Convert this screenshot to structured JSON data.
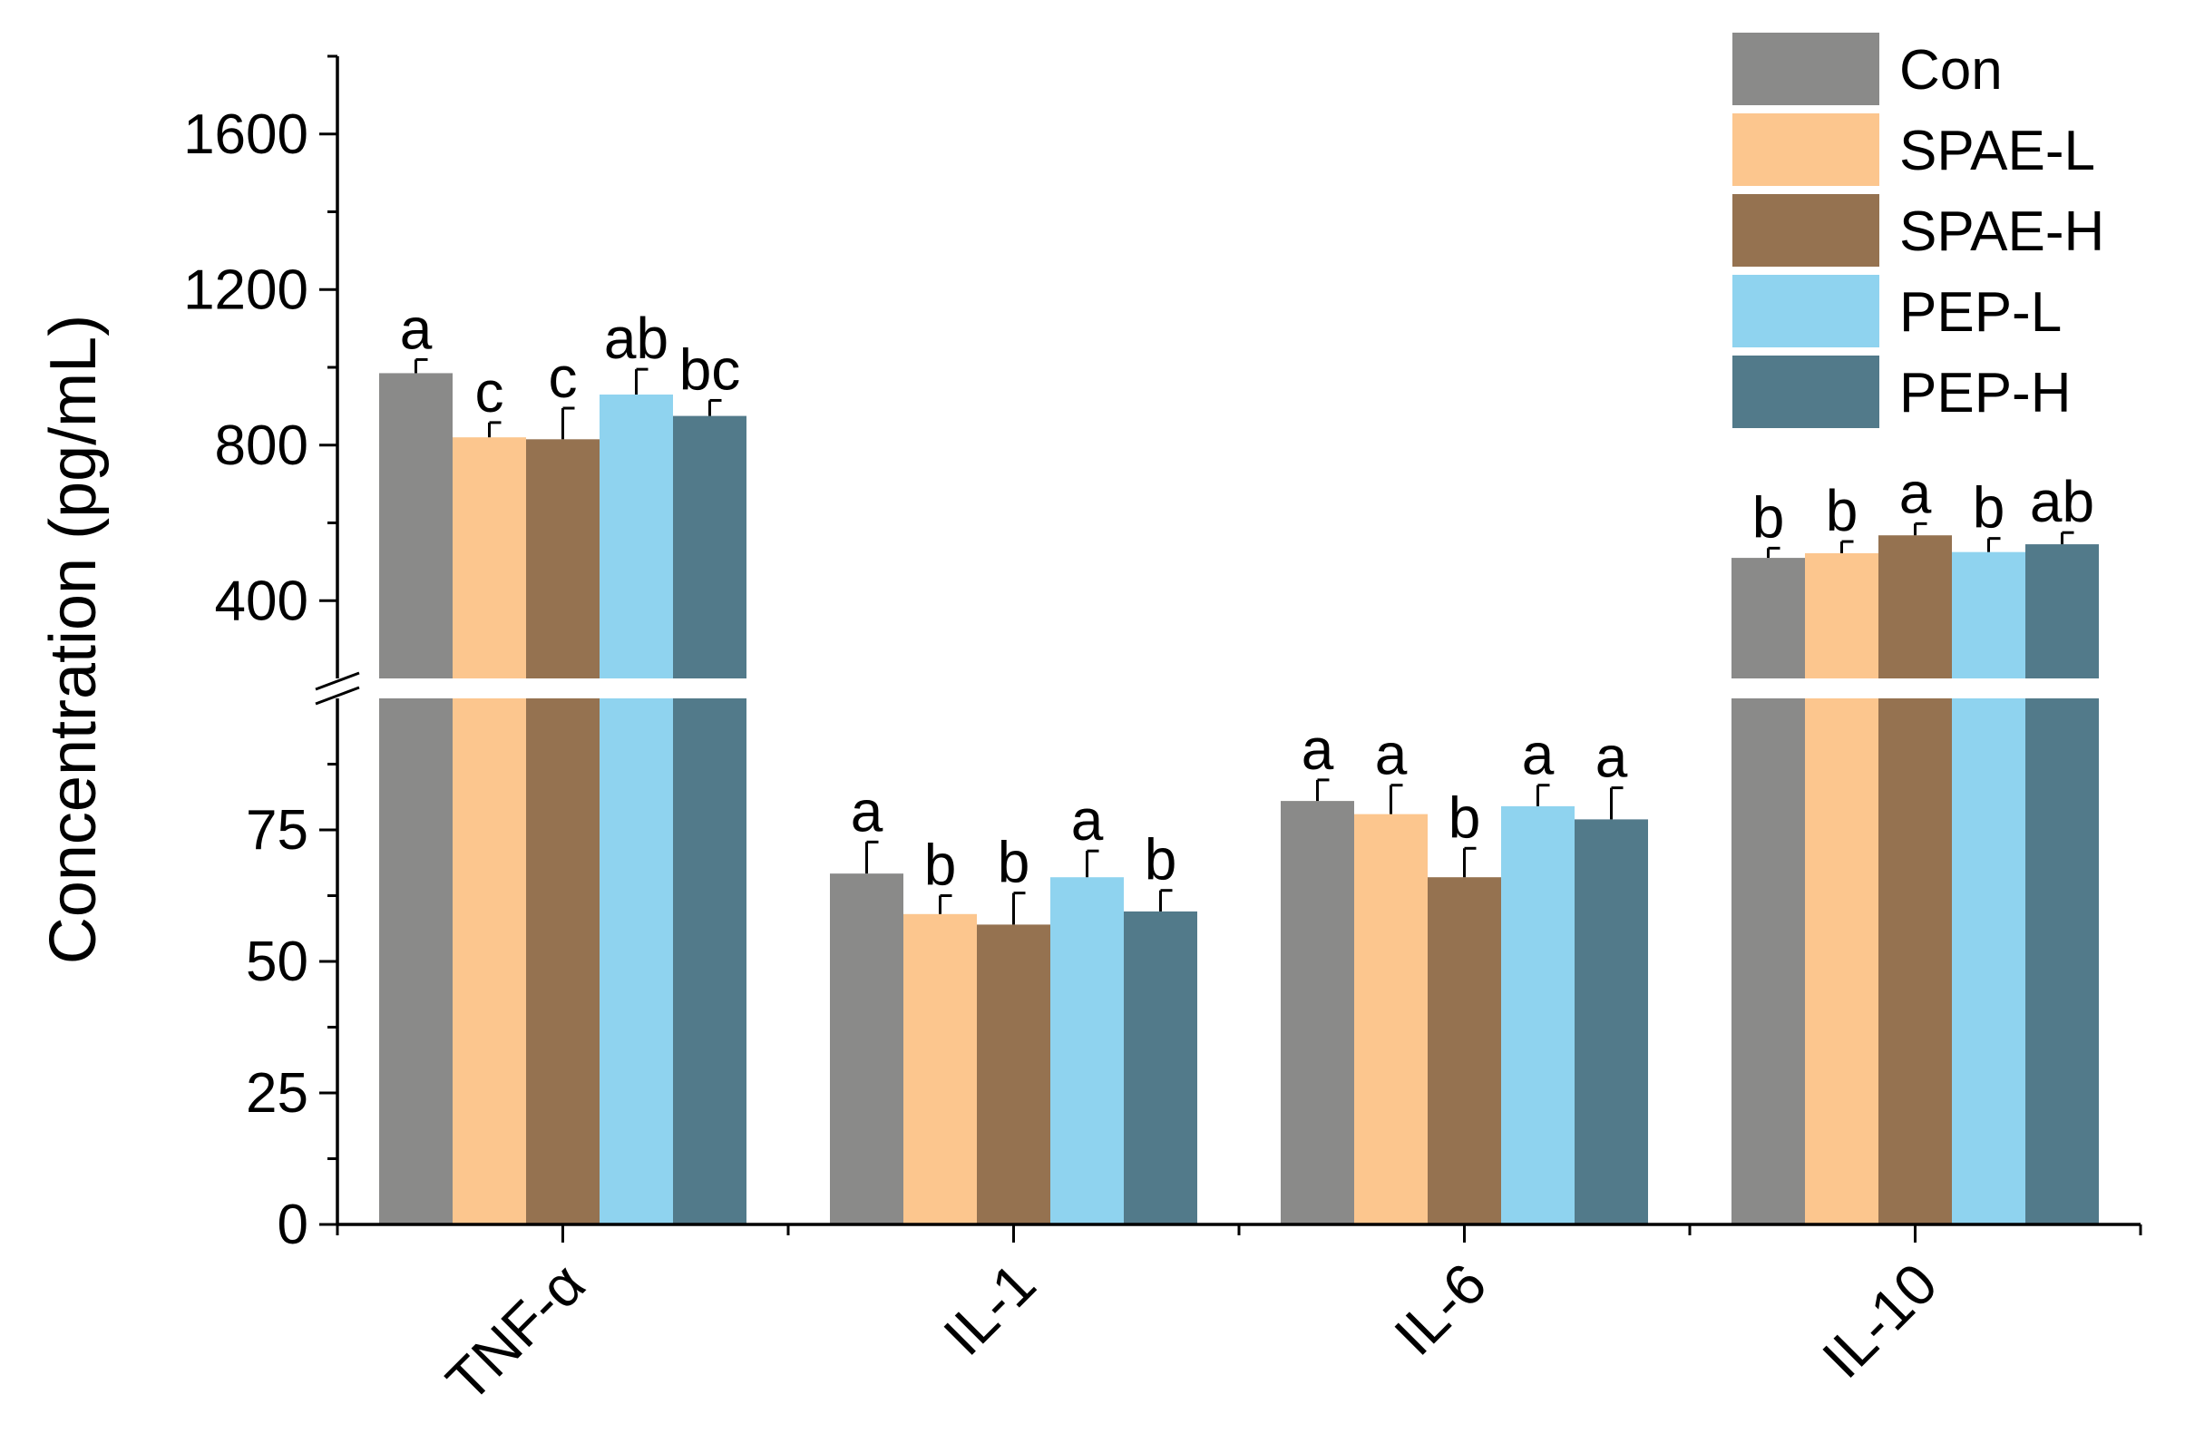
{
  "chart_data": {
    "type": "bar",
    "title": "",
    "xlabel": "",
    "ylabel": "Concentration (pg/mL)",
    "categories": [
      "TNF-α",
      "IL-1",
      "IL-6",
      "IL-10"
    ],
    "series": [
      {
        "name": "Con",
        "color": "#8a8a89",
        "values": [
          985,
          66.7,
          80.5,
          510
        ],
        "errors": [
          35,
          6.0,
          4.0,
          25
        ],
        "labels": [
          "a",
          "a",
          "a",
          "b"
        ]
      },
      {
        "name": "SPAE-L",
        "color": "#fcc68e",
        "values": [
          820,
          59.0,
          78.0,
          522
        ],
        "errors": [
          38,
          3.5,
          5.5,
          30
        ],
        "labels": [
          "c",
          "b",
          "a",
          "b"
        ]
      },
      {
        "name": "SPAE-H",
        "color": "#957250",
        "values": [
          815,
          57.0,
          66.0,
          568
        ],
        "errors": [
          80,
          6.0,
          5.5,
          30
        ],
        "labels": [
          "c",
          "b",
          "b",
          "a"
        ]
      },
      {
        "name": "PEP-L",
        "color": "#8fd3ef",
        "values": [
          930,
          66.0,
          79.5,
          525
        ],
        "errors": [
          65,
          5.0,
          4.0,
          35
        ],
        "labels": [
          "ab",
          "a",
          "a",
          "b"
        ]
      },
      {
        "name": "PEP-H",
        "color": "#527a8a",
        "values": [
          875,
          59.5,
          77.0,
          545
        ],
        "errors": [
          40,
          4.0,
          6.0,
          30
        ],
        "labels": [
          "bc",
          "b",
          "a",
          "ab"
        ]
      }
    ],
    "y_axis_broken": true,
    "ylim_lower": [
      0,
      100
    ],
    "ylim_upper": [
      200,
      1800
    ],
    "yticks_lower": [
      0,
      25,
      50,
      75
    ],
    "yticks_upper": [
      400,
      800,
      1200,
      1600
    ],
    "grid": false,
    "legend_position": "top-right"
  }
}
